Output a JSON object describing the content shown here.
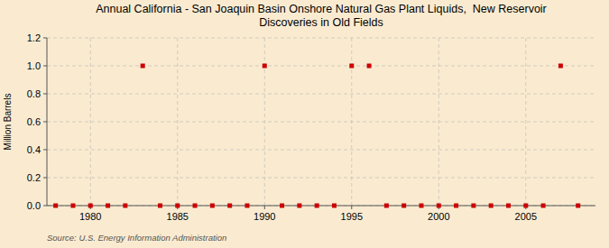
{
  "chart_data": {
    "type": "scatter",
    "title": "Annual California - San Joaquin Basin Onshore Natural Gas Plant Liquids,  New Reservoir\nDiscoveries in Old Fields",
    "ylabel": "Million Barrels",
    "annotations": [
      "Source: U.S. Energy Information Administration"
    ],
    "color": "#cc0000",
    "marker": "square",
    "grid": true,
    "xlim": [
      1977.5,
      2009
    ],
    "ylim": [
      0.0,
      1.2
    ],
    "xticks": [
      1980,
      1985,
      1990,
      1995,
      2000,
      2005
    ],
    "yticks": [
      {
        "value": 0.0,
        "label": "0.0"
      },
      0.2,
      0.4,
      0.6,
      0.8,
      {
        "value": 1.0,
        "label": "1.0"
      },
      1.2
    ],
    "x": [
      1978,
      1979,
      1980,
      1981,
      1982,
      1983,
      1984,
      1985,
      1986,
      1987,
      1988,
      1989,
      1990,
      1991,
      1992,
      1993,
      1994,
      1995,
      1996,
      1997,
      1998,
      1999,
      2000,
      2001,
      2002,
      2003,
      2004,
      2005,
      2006,
      2007,
      2008
    ],
    "values": [
      0.0,
      0.0,
      0.0,
      0.0,
      0.0,
      1.0,
      0.0,
      0.0,
      0.0,
      0.0,
      0.0,
      0.0,
      1.0,
      0.0,
      0.0,
      0.0,
      0.0,
      1.0,
      1.0,
      0.0,
      0.0,
      0.0,
      0.0,
      0.0,
      0.0,
      0.0,
      0.0,
      0.0,
      0.0,
      1.0,
      0.0
    ]
  }
}
